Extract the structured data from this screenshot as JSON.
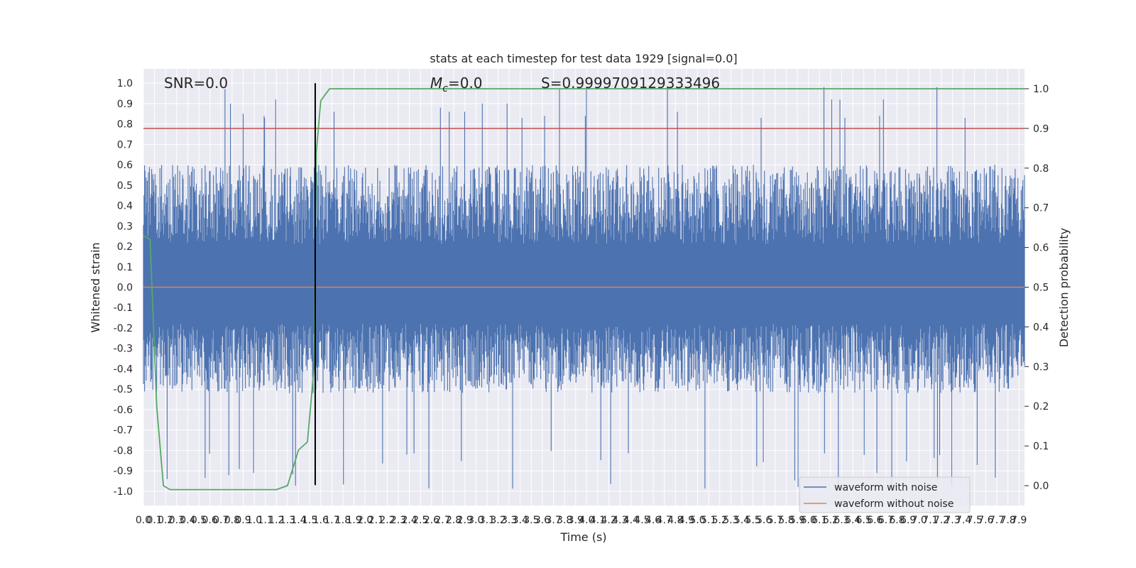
{
  "chart_data": {
    "type": "line",
    "title": "stats at each timestep for test data 1929 [signal=0.0]",
    "xlabel": "Time (s)",
    "ylabel": "Whitened strain",
    "y2label": "Detection probability",
    "xlim": [
      0.0,
      7.95
    ],
    "ylim": [
      -1.07,
      1.07
    ],
    "y2lim": [
      -0.05,
      1.05
    ],
    "x_ticks": [
      "0.0",
      "0.1",
      "0.2",
      "0.3",
      "0.4",
      "0.5",
      "0.6",
      "0.7",
      "0.8",
      "0.9",
      "1.0",
      "1.1",
      "1.2",
      "1.3",
      "1.4",
      "1.5",
      "1.6",
      "1.7",
      "1.8",
      "1.9",
      "2.0",
      "2.1",
      "2.2",
      "2.3",
      "2.4",
      "2.5",
      "2.6",
      "2.7",
      "2.8",
      "2.9",
      "3.0",
      "3.1",
      "3.2",
      "3.3",
      "3.4",
      "3.5",
      "3.6",
      "3.7",
      "3.8",
      "3.9",
      "4.0",
      "4.1",
      "4.2",
      "4.3",
      "4.4",
      "4.5",
      "4.6",
      "4.7",
      "4.8",
      "4.9",
      "5.0",
      "5.1",
      "5.2",
      "5.3",
      "5.4",
      "5.5",
      "5.6",
      "5.7",
      "5.8",
      "5.9",
      "6.0",
      "6.1",
      "6.2",
      "6.3",
      "6.4",
      "6.5",
      "6.6",
      "6.7",
      "6.8",
      "6.9",
      "7.0",
      "7.1",
      "7.2",
      "7.3",
      "7.4",
      "7.5",
      "7.6",
      "7.7",
      "7.8",
      "7.9"
    ],
    "y_ticks": [
      "1.0",
      "0.9",
      "0.8",
      "0.7",
      "0.6",
      "0.5",
      "0.4",
      "0.3",
      "0.2",
      "0.1",
      "0.0",
      "-0.1",
      "-0.2",
      "-0.3",
      "-0.4",
      "-0.5",
      "-0.6",
      "-0.7",
      "-0.8",
      "-0.9",
      "-1.0"
    ],
    "y2_ticks": [
      "1.0",
      "0.9",
      "0.8",
      "0.7",
      "0.6",
      "0.5",
      "0.4",
      "0.3",
      "0.2",
      "0.1",
      "0.0"
    ],
    "grid": true,
    "legend": {
      "placement": "lower-right"
    },
    "annotations": {
      "snr": "SNR=0.0",
      "mc_symbol": "M",
      "mc_sub": "c",
      "mc_value": "=0.0",
      "score": "S=0.9999709129333496"
    },
    "series": [
      {
        "name": "waveform with noise",
        "color": "#4c72b0",
        "envelope_typical": [
          -0.4,
          0.6
        ],
        "envelope_extreme": [
          -1.0,
          1.0
        ]
      },
      {
        "name": "waveform without noise",
        "color": "#dd8452",
        "value": 0.0
      }
    ],
    "detection_probability": {
      "color": "#55a868",
      "x": [
        0.0,
        0.06,
        0.12,
        0.18,
        0.24,
        1.2,
        1.3,
        1.4,
        1.48,
        1.54,
        1.56,
        1.6,
        1.68,
        7.95
      ],
      "y": [
        0.63,
        0.62,
        0.2,
        0.0,
        -0.01,
        -0.01,
        0.0,
        0.09,
        0.11,
        0.3,
        0.84,
        0.97,
        1.0,
        1.0
      ]
    },
    "threshold": {
      "value": 0.9,
      "color": "#c44e52"
    },
    "marker_time": {
      "x": 1.55,
      "color": "#000000"
    },
    "colors": {
      "panel": "#eaeaf2",
      "grid": "#ffffff",
      "text": "#262626"
    }
  }
}
